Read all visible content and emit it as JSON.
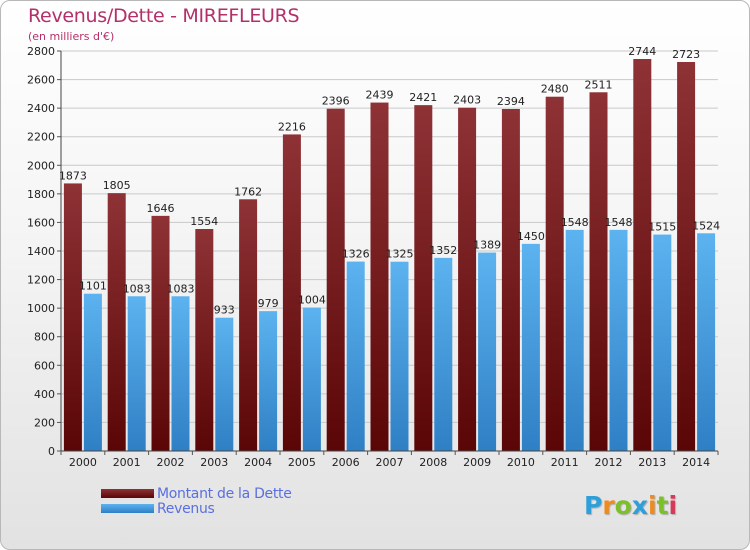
{
  "title": "Revenus/Dette - MIREFLEURS",
  "subtitle": "(en milliers d'€)",
  "brand": {
    "name": "Proxiti",
    "letters": [
      "P",
      "r",
      "o",
      "x",
      "i",
      "t",
      "i"
    ],
    "colors": [
      "#2e9fd9",
      "#f08a1c",
      "#7bbf2a",
      "#2e9fd9",
      "#f08a1c",
      "#7bbf2a",
      "#d6395a"
    ]
  },
  "chart_data": {
    "type": "bar",
    "title": "Revenus/Dette - MIREFLEURS",
    "subtitle": "(en milliers d'€)",
    "categories": [
      "2000",
      "2001",
      "2002",
      "2003",
      "2004",
      "2005",
      "2006",
      "2007",
      "2008",
      "2009",
      "2010",
      "2011",
      "2012",
      "2013",
      "2014"
    ],
    "series": [
      {
        "name": "Montant de la Dette",
        "color": "#7a1e22",
        "values": [
          1873,
          1805,
          1646,
          1554,
          1762,
          2216,
          2396,
          2439,
          2421,
          2403,
          2394,
          2480,
          2511,
          2744,
          2723
        ]
      },
      {
        "name": "Revenus",
        "color": "#4aa3e6",
        "values": [
          1101,
          1083,
          1083,
          933,
          979,
          1004,
          1326,
          1325,
          1352,
          1389,
          1450,
          1548,
          1548,
          1515,
          1524
        ]
      }
    ],
    "ylim": [
      0,
      2800
    ],
    "yticks": [
      0,
      200,
      400,
      600,
      800,
      1000,
      1200,
      1400,
      1600,
      1800,
      2000,
      2200,
      2400,
      2600,
      2800
    ],
    "grid": true,
    "legend_position": "bottom-left"
  }
}
